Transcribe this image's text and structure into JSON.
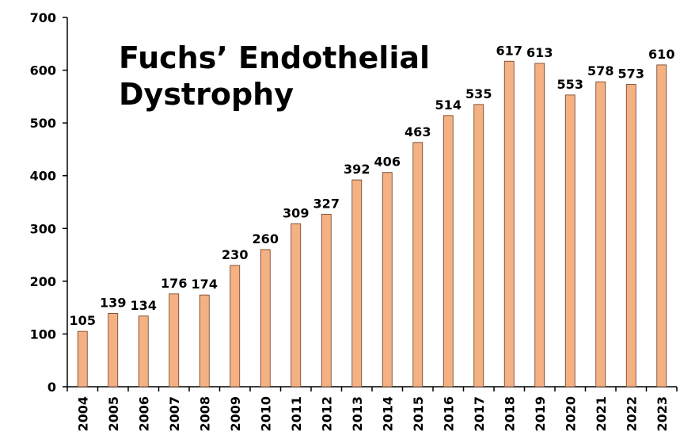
{
  "chart_data": {
    "type": "bar",
    "title": "Fuchs’ Endothelial Dystrophy",
    "categories": [
      "2004",
      "2005",
      "2006",
      "2007",
      "2008",
      "2009",
      "2010",
      "2011",
      "2012",
      "2013",
      "2014",
      "2015",
      "2016",
      "2017",
      "2018",
      "2019",
      "2020",
      "2021",
      "2022",
      "2023"
    ],
    "values": [
      105,
      139,
      134,
      176,
      174,
      230,
      260,
      309,
      327,
      392,
      406,
      463,
      514,
      535,
      617,
      613,
      553,
      578,
      573,
      610
    ],
    "color": "#f4b183",
    "ylim": [
      0,
      700
    ],
    "yticks": [
      0,
      100,
      200,
      300,
      400,
      500,
      600,
      700
    ],
    "grid": false
  }
}
